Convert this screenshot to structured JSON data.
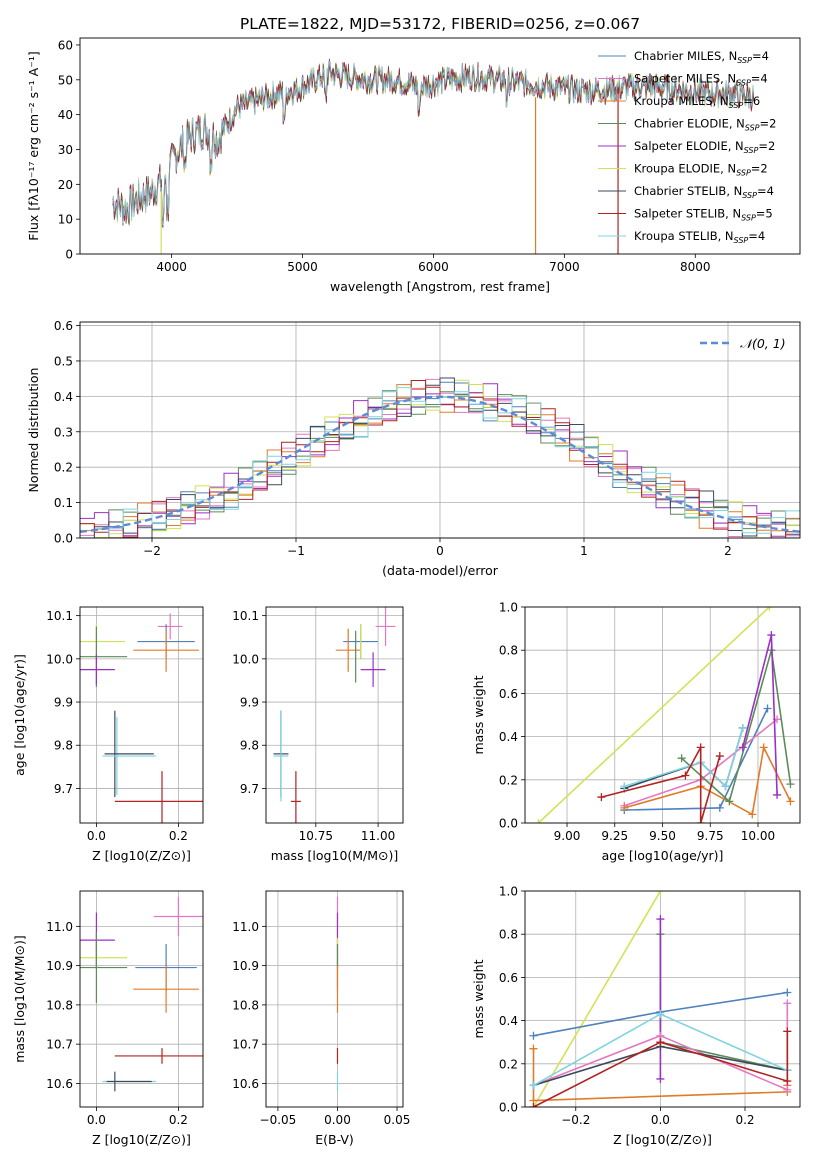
{
  "figure_title": "PLATE=1822, MJD=53172, FIBERID=0256, z=0.067",
  "colors": {
    "chabrier_miles": "#4f81bd",
    "salpeter_miles": "#e377c2",
    "kroupa_miles": "#e07b2a",
    "chabrier_elodie": "#5b8c5a",
    "salpeter_elodie": "#9b30c8",
    "kroupa_elodie": "#d4e157",
    "chabrier_stelib": "#3d4a5c",
    "salpeter_stelib": "#b22222",
    "kroupa_stelib": "#7fd4e0",
    "normal_curve": "#5b8dd6",
    "grid": "#b0b0b0"
  },
  "chart_data": [
    {
      "id": "spectrum",
      "type": "line",
      "title": "PLATE=1822, MJD=53172, FIBERID=0256, z=0.067",
      "xlabel": "wavelength [Angstrom, rest frame]",
      "ylabel": "Flux [f_λ10^-17 erg cm^-2 s^-1 A^-1]",
      "xlim": [
        3300,
        8800
      ],
      "ylim": [
        0,
        62
      ],
      "xticks": [
        4000,
        5000,
        6000,
        7000,
        8000
      ],
      "yticks": [
        0,
        10,
        20,
        30,
        40,
        50,
        60
      ],
      "grid": false,
      "legend_position": "top-right",
      "series": [
        {
          "name": "Chabrier MILES, N_SSP=4",
          "color_key": "chabrier_miles"
        },
        {
          "name": "Salpeter MILES, N_SSP=4",
          "color_key": "salpeter_miles"
        },
        {
          "name": "Kroupa MILES, N_SSP=6",
          "color_key": "kroupa_miles"
        },
        {
          "name": "Chabrier ELODIE, N_SSP=2",
          "color_key": "chabrier_elodie"
        },
        {
          "name": "Salpeter ELODIE, N_SSP=2",
          "color_key": "salpeter_elodie"
        },
        {
          "name": "Kroupa ELODIE, N_SSP=2",
          "color_key": "kroupa_elodie"
        },
        {
          "name": "Chabrier STELIB, N_SSP=4",
          "color_key": "chabrier_stelib"
        },
        {
          "name": "Salpeter STELIB, N_SSP=5",
          "color_key": "salpeter_stelib"
        },
        {
          "name": "Kroupa STELIB, N_SSP=4",
          "color_key": "kroupa_stelib"
        }
      ],
      "continuum": {
        "x": [
          3550,
          3650,
          3750,
          3850,
          3950,
          4050,
          4150,
          4250,
          4350,
          4500,
          4650,
          4800,
          4950,
          5100,
          5200,
          5350,
          5500,
          5700,
          5900,
          6100,
          6300,
          6500,
          6700,
          6900,
          7100,
          7300,
          7500,
          7700,
          7900,
          8100,
          8300,
          8450
        ],
        "y": [
          15,
          13,
          16,
          18,
          22,
          30,
          34,
          36,
          33,
          42,
          44,
          46,
          47,
          50,
          52,
          51,
          50,
          50,
          48,
          50,
          51,
          50,
          49,
          48,
          47,
          47,
          48,
          48,
          47,
          46,
          46,
          45
        ]
      }
    },
    {
      "id": "residuals",
      "type": "histogram",
      "xlabel": "(data-model)/error",
      "ylabel": "Normed distribution",
      "xlim": [
        -2.5,
        2.5
      ],
      "ylim": [
        0,
        0.61
      ],
      "xticks": [
        -2,
        -1,
        0,
        1,
        2
      ],
      "yticks": [
        0.0,
        0.1,
        0.2,
        0.3,
        0.4,
        0.5,
        0.6
      ],
      "grid": true,
      "legend_position": "top-right",
      "legend_label": "𝒩(0, 1)",
      "bin_width": 0.1
    },
    {
      "id": "age_vs_Z",
      "type": "errorbar",
      "xlabel": "Z [log10(Z/Z⊙)]",
      "ylabel": "age  [log10(age/yr)]",
      "xlim": [
        -0.04,
        0.26
      ],
      "ylim": [
        9.62,
        10.12
      ],
      "xticks": [
        0.0,
        0.2
      ],
      "yticks": [
        9.7,
        9.8,
        9.9,
        10.0,
        10.1
      ],
      "grid": true,
      "points": [
        {
          "color_key": "salpeter_miles",
          "x": 0.18,
          "xerr": 0.03,
          "y": 10.075,
          "yerr": 0.03
        },
        {
          "color_key": "chabrier_miles",
          "x": 0.17,
          "xerr": 0.07,
          "y": 10.04,
          "yerr": 0.04
        },
        {
          "color_key": "kroupa_miles",
          "x": 0.17,
          "xerr": 0.08,
          "y": 10.02,
          "yerr": 0.05
        },
        {
          "color_key": "kroupa_elodie",
          "x": 0.0,
          "xerr": 0.07,
          "y": 10.04,
          "yerr": 0.04
        },
        {
          "color_key": "chabrier_elodie",
          "x": 0.0,
          "xerr": 0.075,
          "y": 10.005,
          "yerr": 0.07
        },
        {
          "color_key": "salpeter_elodie",
          "x": 0.0,
          "xerr": 0.045,
          "y": 9.975,
          "yerr": 0.035
        },
        {
          "color_key": "chabrier_stelib",
          "x": 0.045,
          "xerr": 0.0,
          "y": 9.78,
          "yerr": 0.1
        },
        {
          "color_key": "kroupa_stelib",
          "x": 0.05,
          "xerr": 0.0,
          "y": 9.775,
          "yerr": 0.09
        },
        {
          "color_key": "chabrier_stelib",
          "x": 0.08,
          "xerr": 0.06,
          "y": 9.78,
          "yerr": 0.0
        },
        {
          "color_key": "kroupa_stelib",
          "x": 0.08,
          "xerr": 0.065,
          "y": 9.775,
          "yerr": 0.0
        },
        {
          "color_key": "salpeter_stelib",
          "x": 0.16,
          "xerr": 0.115,
          "y": 9.67,
          "yerr": 0.07
        }
      ]
    },
    {
      "id": "age_vs_mass",
      "type": "errorbar",
      "xlabel": "mass [log10(M/M⊙)]",
      "ylabel": "",
      "xlim": [
        10.55,
        11.1
      ],
      "ylim": [
        9.62,
        10.12
      ],
      "xticks": [
        10.75,
        11.0
      ],
      "yticks": [
        9.7,
        9.8,
        9.9,
        10.0,
        10.1
      ],
      "grid": true,
      "points": [
        {
          "color_key": "salpeter_miles",
          "x": 11.03,
          "xerr": 0.04,
          "y": 10.075,
          "yerr": 0.045
        },
        {
          "color_key": "chabrier_miles",
          "x": 10.93,
          "xerr": 0.07,
          "y": 10.04,
          "yerr": 0.04
        },
        {
          "color_key": "kroupa_miles",
          "x": 10.88,
          "xerr": 0.05,
          "y": 10.02,
          "yerr": 0.05
        },
        {
          "color_key": "kroupa_elodie",
          "x": 10.93,
          "xerr": 0.0,
          "y": 10.04,
          "yerr": 0.04
        },
        {
          "color_key": "chabrier_elodie",
          "x": 10.91,
          "xerr": 0.0,
          "y": 10.005,
          "yerr": 0.06
        },
        {
          "color_key": "salpeter_elodie",
          "x": 10.98,
          "xerr": 0.05,
          "y": 9.975,
          "yerr": 0.04
        },
        {
          "color_key": "chabrier_stelib",
          "x": 10.61,
          "xerr": 0.03,
          "y": 9.78,
          "yerr": 0.1
        },
        {
          "color_key": "kroupa_stelib",
          "x": 10.61,
          "xerr": 0.03,
          "y": 9.775,
          "yerr": 0.105
        },
        {
          "color_key": "salpeter_stelib",
          "x": 10.67,
          "xerr": 0.02,
          "y": 9.67,
          "yerr": 0.07
        }
      ]
    },
    {
      "id": "weight_vs_age",
      "type": "line",
      "xlabel": "age  [log10(age/yr)]",
      "ylabel": "mass weight",
      "xlim": [
        8.78,
        10.22
      ],
      "ylim": [
        0,
        1
      ],
      "xticks": [
        9.0,
        9.25,
        9.5,
        9.75,
        10.0
      ],
      "xticklabels": [
        "9.00",
        "9.25",
        "9.50",
        "9.75",
        "10.00"
      ],
      "yticks": [
        0.0,
        0.2,
        0.4,
        0.6,
        0.8,
        1.0
      ],
      "grid": true,
      "series": [
        {
          "color_key": "kroupa_elodie",
          "x": [
            8.85,
            10.06
          ],
          "y": [
            0.0,
            1.0
          ]
        },
        {
          "color_key": "chabrier_miles",
          "x": [
            9.3,
            9.8,
            10.05
          ],
          "y": [
            0.06,
            0.07,
            0.53
          ]
        },
        {
          "color_key": "salpeter_miles",
          "x": [
            9.3,
            9.7,
            10.1
          ],
          "y": [
            0.08,
            0.2,
            0.48
          ]
        },
        {
          "color_key": "kroupa_miles",
          "x": [
            9.3,
            9.7,
            9.97,
            10.03,
            10.17
          ],
          "y": [
            0.07,
            0.17,
            0.04,
            0.35,
            0.1
          ]
        },
        {
          "color_key": "chabrier_elodie",
          "x": [
            9.6,
            9.85,
            10.07,
            10.17
          ],
          "y": [
            0.3,
            0.1,
            0.8,
            0.18
          ]
        },
        {
          "color_key": "salpeter_elodie",
          "x": [
            9.92,
            10.07,
            10.1
          ],
          "y": [
            0.35,
            0.87,
            0.13
          ]
        },
        {
          "color_key": "chabrier_stelib",
          "x": [
            9.3,
            9.7,
            9.83,
            9.92
          ],
          "y": [
            0.16,
            0.28,
            0.17,
            0.44
          ]
        },
        {
          "color_key": "kroupa_stelib",
          "x": [
            9.3,
            9.7,
            9.83,
            9.92
          ],
          "y": [
            0.17,
            0.28,
            0.17,
            0.44
          ]
        },
        {
          "color_key": "salpeter_stelib",
          "x": [
            9.18,
            9.62,
            9.7,
            9.7,
            9.8
          ],
          "y": [
            0.12,
            0.22,
            0.35,
            0.0,
            0.31
          ]
        }
      ]
    },
    {
      "id": "mass_vs_Z",
      "type": "errorbar",
      "xlabel": "Z [log10(Z/Z⊙)]",
      "ylabel": "mass [log10(M/M⊙)]",
      "xlim": [
        -0.04,
        0.26
      ],
      "ylim": [
        10.54,
        11.09
      ],
      "xticks": [
        0.0,
        0.2
      ],
      "yticks": [
        10.6,
        10.7,
        10.8,
        10.9,
        11.0
      ],
      "grid": true,
      "points": [
        {
          "color_key": "salpeter_miles",
          "x": 0.2,
          "xerr": 0.06,
          "y": 11.025,
          "yerr": 0.05
        },
        {
          "color_key": "salpeter_elodie",
          "x": 0.0,
          "xerr": 0.045,
          "y": 10.965,
          "yerr": 0.07
        },
        {
          "color_key": "kroupa_elodie",
          "x": 0.0,
          "xerr": 0.075,
          "y": 10.92,
          "yerr": 0.0
        },
        {
          "color_key": "chabrier_elodie",
          "x": 0.0,
          "xerr": 0.075,
          "y": 10.895,
          "yerr": 0.09
        },
        {
          "color_key": "chabrier_miles",
          "x": 0.17,
          "xerr": 0.075,
          "y": 10.895,
          "yerr": 0.06
        },
        {
          "color_key": "kroupa_miles",
          "x": 0.17,
          "xerr": 0.08,
          "y": 10.84,
          "yerr": 0.06
        },
        {
          "color_key": "salpeter_stelib",
          "x": 0.16,
          "xerr": 0.115,
          "y": 10.67,
          "yerr": 0.02
        },
        {
          "color_key": "chabrier_stelib",
          "x": 0.045,
          "xerr": 0.0,
          "y": 10.605,
          "yerr": 0.025
        },
        {
          "color_key": "kroupa_stelib",
          "x": 0.08,
          "xerr": 0.065,
          "y": 10.605,
          "yerr": 0.0
        },
        {
          "color_key": "chabrier_stelib",
          "x": 0.08,
          "xerr": 0.055,
          "y": 10.605,
          "yerr": 0.0
        }
      ]
    },
    {
      "id": "mass_vs_ebv",
      "type": "errorbar",
      "xlabel": "E(B-V)",
      "ylabel": "",
      "xlim": [
        -0.06,
        0.055
      ],
      "ylim": [
        10.54,
        11.09
      ],
      "xticks": [
        -0.05,
        0.0,
        0.05
      ],
      "xticklabels": [
        "−0.05",
        "0.00",
        "0.05"
      ],
      "yticks": [
        10.6,
        10.7,
        10.8,
        10.9,
        11.0
      ],
      "grid": true,
      "points": [
        {
          "color_key": "salpeter_miles",
          "x": 0.0,
          "xerr": 0.0,
          "y": 11.025,
          "yerr": 0.05
        },
        {
          "color_key": "salpeter_elodie",
          "x": 0.0,
          "xerr": 0.0,
          "y": 10.965,
          "yerr": 0.07
        },
        {
          "color_key": "kroupa_elodie",
          "x": 0.0,
          "xerr": 0.0,
          "y": 10.92,
          "yerr": 0.05
        },
        {
          "color_key": "chabrier_elodie",
          "x": 0.0,
          "xerr": 0.0,
          "y": 10.895,
          "yerr": 0.06
        },
        {
          "color_key": "kroupa_miles",
          "x": 0.0,
          "xerr": 0.0,
          "y": 10.84,
          "yerr": 0.06
        },
        {
          "color_key": "salpeter_stelib",
          "x": 0.0,
          "xerr": 0.0,
          "y": 10.67,
          "yerr": 0.02
        },
        {
          "color_key": "kroupa_stelib",
          "x": 0.0,
          "xerr": 0.0,
          "y": 10.605,
          "yerr": 0.025
        }
      ]
    },
    {
      "id": "weight_vs_Z",
      "type": "line",
      "xlabel": "Z [log10(Z/Z⊙)]",
      "ylabel": "mass weight",
      "xlim": [
        -0.32,
        0.33
      ],
      "ylim": [
        0,
        1
      ],
      "xticks": [
        -0.2,
        0.0,
        0.2
      ],
      "xticklabels": [
        "−0.2",
        "0.0",
        "0.2"
      ],
      "yticks": [
        0.0,
        0.2,
        0.4,
        0.6,
        0.8,
        1.0
      ],
      "grid": true,
      "series": [
        {
          "color_key": "kroupa_elodie",
          "x": [
            -0.3,
            0.0
          ],
          "y": [
            0.0,
            1.0
          ]
        },
        {
          "color_key": "chabrier_miles",
          "x": [
            -0.3,
            0.0,
            0.3
          ],
          "y": [
            0.33,
            0.44,
            0.53
          ]
        },
        {
          "color_key": "kroupa_miles",
          "x": [
            -0.3,
            -0.3,
            0.3,
            0.3,
            0.3
          ],
          "y": [
            0.27,
            0.03,
            0.07,
            0.35,
            0.1
          ]
        },
        {
          "color_key": "chabrier_elodie",
          "x": [
            0.0,
            0.0,
            0.3
          ],
          "y": [
            0.8,
            0.3,
            0.17
          ]
        },
        {
          "color_key": "salpeter_elodie",
          "x": [
            0.0,
            0.0
          ],
          "y": [
            0.87,
            0.13
          ]
        },
        {
          "color_key": "salpeter_miles",
          "x": [
            -0.3,
            0.0,
            0.3,
            0.3
          ],
          "y": [
            0.1,
            0.33,
            0.08,
            0.48
          ]
        },
        {
          "color_key": "chabrier_stelib",
          "x": [
            -0.3,
            0.0,
            0.3
          ],
          "y": [
            0.1,
            0.28,
            0.17
          ]
        },
        {
          "color_key": "kroupa_stelib",
          "x": [
            -0.3,
            0.0,
            0.3
          ],
          "y": [
            0.1,
            0.43,
            0.17
          ]
        },
        {
          "color_key": "salpeter_stelib",
          "x": [
            -0.3,
            0.0,
            0.3,
            0.3
          ],
          "y": [
            0.0,
            0.3,
            0.12,
            0.35
          ]
        }
      ]
    }
  ]
}
